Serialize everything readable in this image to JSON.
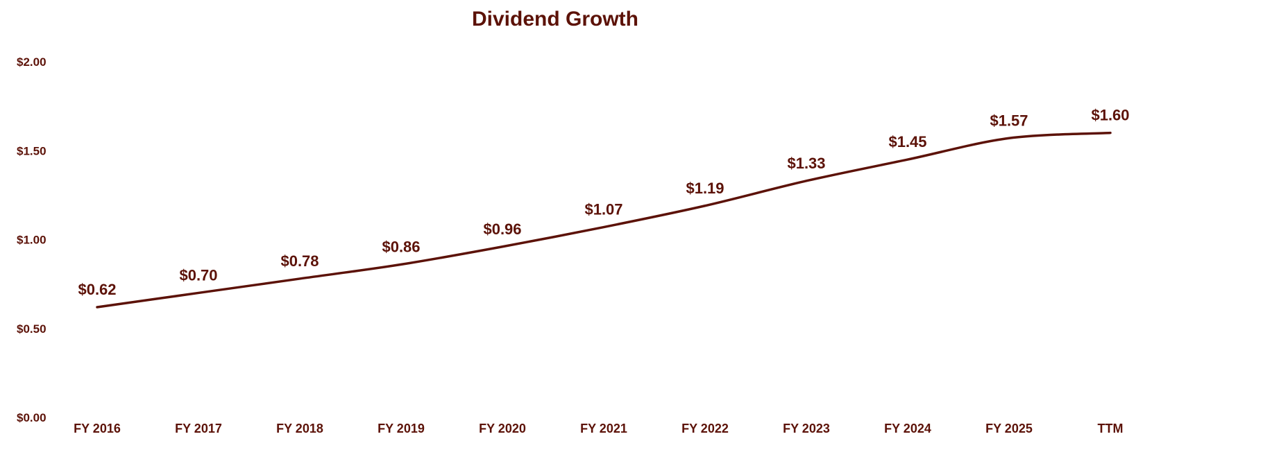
{
  "chart_data": {
    "type": "line",
    "title": "Dividend Growth",
    "categories": [
      "FY 2016",
      "FY 2017",
      "FY 2018",
      "FY 2019",
      "FY 2020",
      "FY 2021",
      "FY 2022",
      "FY 2023",
      "FY 2024",
      "FY 2025",
      "TTM"
    ],
    "series": [
      {
        "values": [
          0.62,
          0.7,
          0.78,
          0.86,
          0.96,
          1.07,
          1.19,
          1.33,
          1.45,
          1.57,
          1.6
        ],
        "data_labels": [
          "$0.62",
          "$0.70",
          "$0.78",
          "$0.86",
          "$0.96",
          "$1.07",
          "$1.19",
          "$1.33",
          "$1.45",
          "$1.57",
          "$1.60"
        ]
      }
    ],
    "y_ticks": [
      {
        "value": 0.0,
        "label": "$0.00"
      },
      {
        "value": 0.5,
        "label": "$0.50"
      },
      {
        "value": 1.0,
        "label": "$1.00"
      },
      {
        "value": 1.5,
        "label": "$1.50"
      },
      {
        "value": 2.0,
        "label": "$2.00"
      }
    ],
    "ylim": [
      0,
      2
    ],
    "xlabel": "",
    "ylabel": "",
    "grid": false,
    "legend": "none",
    "colors": {
      "line": "#5c1208",
      "text": "#5c1208"
    }
  }
}
